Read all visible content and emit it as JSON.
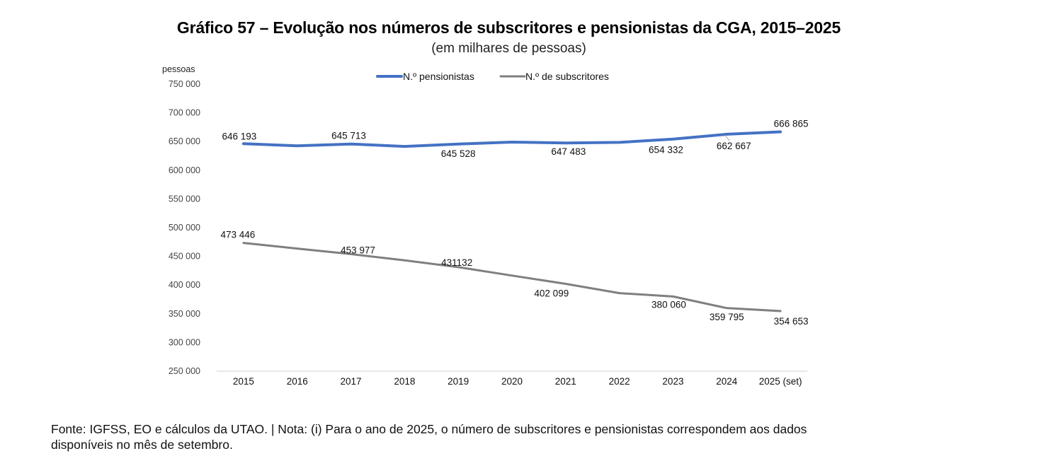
{
  "chart_data": {
    "type": "line",
    "title": "Gráfico 57 – Evolução nos números de subscritores e pensionistas da CGA, 2015–2025",
    "subtitle": "(em milhares de pessoas)",
    "ylabel": "pessoas",
    "xlabel": "",
    "ylim": [
      250000,
      750000
    ],
    "yticks": [
      750000,
      700000,
      650000,
      600000,
      550000,
      500000,
      450000,
      400000,
      350000,
      300000,
      250000
    ],
    "ytick_labels": [
      "750 000",
      "700 000",
      "650 000",
      "600 000",
      "550 000",
      "500 000",
      "450 000",
      "400 000",
      "350 000",
      "300 000",
      "250 000"
    ],
    "categories": [
      "2015",
      "2016",
      "2017",
      "2018",
      "2019",
      "2020",
      "2021",
      "2022",
      "2023",
      "2024",
      "2025 (set)"
    ],
    "grid": false,
    "legend_position": "top-center",
    "series": [
      {
        "name": "N.º pensionistas",
        "color": "#4472C4",
        "values": [
          646193,
          642500,
          645713,
          641500,
          645528,
          649000,
          647483,
          648500,
          654332,
          662667,
          666865
        ],
        "labels": [
          "646 193",
          "",
          "645 713",
          "",
          "645 528",
          "",
          "647 483",
          "",
          "654 332",
          "662 667",
          "666 865"
        ]
      },
      {
        "name": "N.º de subscritores",
        "color": "#7F7F7F",
        "values": [
          473446,
          463500,
          453977,
          443000,
          431132,
          416500,
          402099,
          386000,
          380060,
          359795,
          354653
        ],
        "labels": [
          "473 446",
          "",
          "453 977",
          "",
          "431132",
          "",
          "402 099",
          "",
          "380 060",
          "359 795",
          "354 653"
        ]
      }
    ]
  },
  "footnote": {
    "line1": "Fonte: IGFSS, EO e cálculos da UTAO. | Nota: (i) Para o ano de 2025, o número de subscritores e pensionistas correspondem aos dados",
    "line2": "disponíveis no mês de setembro."
  }
}
